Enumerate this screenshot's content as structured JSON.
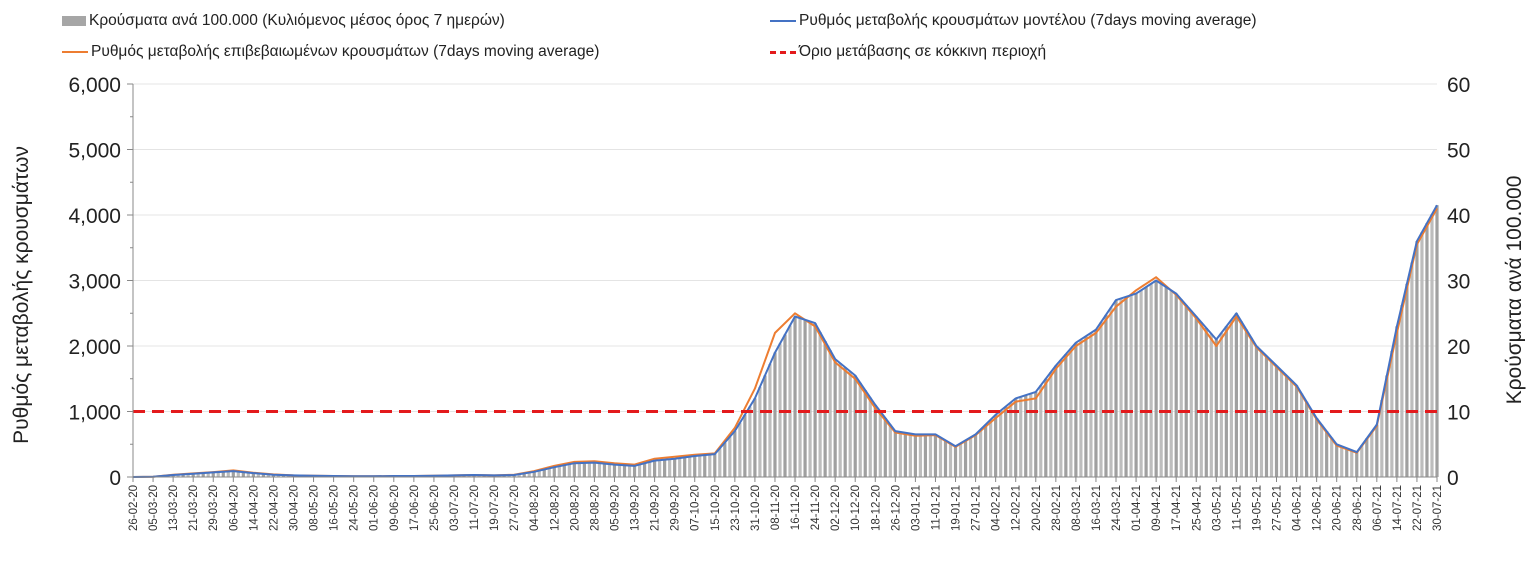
{
  "chart_data": {
    "type": "bar+line",
    "legend": [
      {
        "key": "bars",
        "label": "Κρούσματα ανά 100.000 (Κυλιόμενος μέσος όρος 7 ημερών)"
      },
      {
        "key": "blue",
        "label": "Ρυθμός μεταβολής κρουσμάτων μοντέλου (7days moving average)"
      },
      {
        "key": "orange",
        "label": "Ρυθμός μεταβολής επιβεβαιωμένων κρουσμάτων (7days moving average)"
      },
      {
        "key": "threshold",
        "label": "Όριο μετάβασης σε κόκκινη περιοχή"
      }
    ],
    "legend_position": "top",
    "ylabel_left": "Ρυθμός μεταβολής κρουσμάτων",
    "ylabel_right": "Κρούσματα ανά 100.000",
    "ylim_left": [
      0,
      6000
    ],
    "ylim_right": [
      0,
      60
    ],
    "yticks_left": [
      "0",
      "1,000",
      "2,000",
      "3,000",
      "4,000",
      "5,000",
      "6,000"
    ],
    "yticks_right": [
      "0",
      "10",
      "20",
      "30",
      "40",
      "50",
      "60"
    ],
    "grid": true,
    "threshold_left": 1000,
    "colors": {
      "bars": "#a6a6a6",
      "blue": "#4472c4",
      "orange": "#ed7d31",
      "threshold": "#e31a1c"
    },
    "categories": [
      "26-02-20",
      "05-03-20",
      "13-03-20",
      "21-03-20",
      "29-03-20",
      "06-04-20",
      "14-04-20",
      "22-04-20",
      "30-04-20",
      "08-05-20",
      "16-05-20",
      "24-05-20",
      "01-06-20",
      "09-06-20",
      "17-06-20",
      "25-06-20",
      "03-07-20",
      "11-07-20",
      "19-07-20",
      "27-07-20",
      "04-08-20",
      "12-08-20",
      "20-08-20",
      "28-08-20",
      "05-09-20",
      "13-09-20",
      "21-09-20",
      "29-09-20",
      "07-10-20",
      "15-10-20",
      "23-10-20",
      "31-10-20",
      "08-11-20",
      "16-11-20",
      "24-11-20",
      "02-12-20",
      "10-12-20",
      "18-12-20",
      "26-12-20",
      "03-01-21",
      "11-01-21",
      "19-01-21",
      "27-01-21",
      "04-02-21",
      "12-02-21",
      "20-02-21",
      "28-02-21",
      "08-03-21",
      "16-03-21",
      "24-03-21",
      "01-04-21",
      "09-04-21",
      "17-04-21",
      "25-04-21",
      "03-05-21",
      "11-05-21",
      "19-05-21",
      "27-05-21",
      "04-06-21",
      "12-06-21",
      "20-06-21",
      "28-06-21",
      "06-07-21",
      "14-07-21",
      "22-07-21",
      "30-07-21"
    ],
    "series": [
      {
        "name": "blue",
        "axis": "left",
        "values": [
          0,
          5,
          30,
          50,
          70,
          90,
          60,
          35,
          25,
          20,
          15,
          10,
          10,
          15,
          15,
          20,
          25,
          30,
          25,
          30,
          80,
          150,
          210,
          220,
          190,
          170,
          250,
          280,
          320,
          350,
          700,
          1200,
          1900,
          2450,
          2350,
          1800,
          1550,
          1100,
          700,
          650,
          650,
          470,
          650,
          950,
          1200,
          1300,
          1700,
          2050,
          2250,
          2700,
          2800,
          3000,
          2800,
          2450,
          2100,
          2500,
          2000,
          1700,
          1400,
          900,
          500,
          380,
          800,
          2300,
          3600,
          4150
        ]
      },
      {
        "name": "orange",
        "axis": "left",
        "values": [
          0,
          5,
          35,
          55,
          75,
          100,
          65,
          40,
          25,
          20,
          15,
          10,
          10,
          15,
          15,
          20,
          25,
          30,
          25,
          35,
          90,
          170,
          230,
          240,
          210,
          190,
          280,
          310,
          340,
          360,
          750,
          1350,
          2200,
          2500,
          2300,
          1750,
          1500,
          1050,
          680,
          630,
          640,
          460,
          640,
          900,
          1150,
          1200,
          1650,
          2000,
          2200,
          2600,
          2850,
          3050,
          2780,
          2420,
          2000,
          2450,
          1980,
          1680,
          1380,
          880,
          480,
          370,
          780,
          2200,
          3550,
          4100
        ]
      },
      {
        "name": "bars",
        "axis": "right",
        "values": [
          0,
          0.1,
          0.3,
          0.5,
          0.7,
          0.9,
          0.6,
          0.4,
          0.3,
          0.2,
          0.2,
          0.1,
          0.1,
          0.2,
          0.2,
          0.2,
          0.3,
          0.3,
          0.3,
          0.3,
          0.8,
          1.5,
          2.1,
          2.2,
          1.9,
          1.7,
          2.5,
          2.8,
          3.2,
          3.5,
          7,
          12,
          19,
          24.5,
          23.5,
          18,
          15.5,
          11,
          7,
          6.5,
          6.5,
          4.7,
          6.5,
          9.5,
          12,
          13,
          17,
          20.5,
          22.5,
          27,
          28,
          30,
          28,
          24.5,
          21,
          25,
          20,
          17,
          14,
          9,
          5,
          3.8,
          8,
          23,
          36,
          41.5
        ]
      }
    ]
  }
}
